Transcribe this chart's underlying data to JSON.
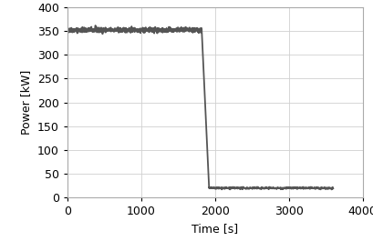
{
  "title": "",
  "xlabel": "Time [s]",
  "ylabel": "Power [kW]",
  "xlim": [
    0,
    4000
  ],
  "ylim": [
    0,
    400
  ],
  "xticks": [
    0,
    1000,
    2000,
    3000,
    4000
  ],
  "yticks": [
    0,
    50,
    100,
    150,
    200,
    250,
    300,
    350,
    400
  ],
  "line_color": "#555555",
  "line_width": 1.3,
  "background_color": "#ffffff",
  "grid_color": "#d0d0d0",
  "high_power": 352,
  "low_power": 20,
  "drop_start": 1820,
  "drop_end": 1920,
  "noise_amplitude": 2.5,
  "noise_seed": 42,
  "phase1_end": 1820,
  "phase2_start": 1920,
  "phase2_end": 3600,
  "tick_fontsize": 9,
  "label_fontsize": 9
}
